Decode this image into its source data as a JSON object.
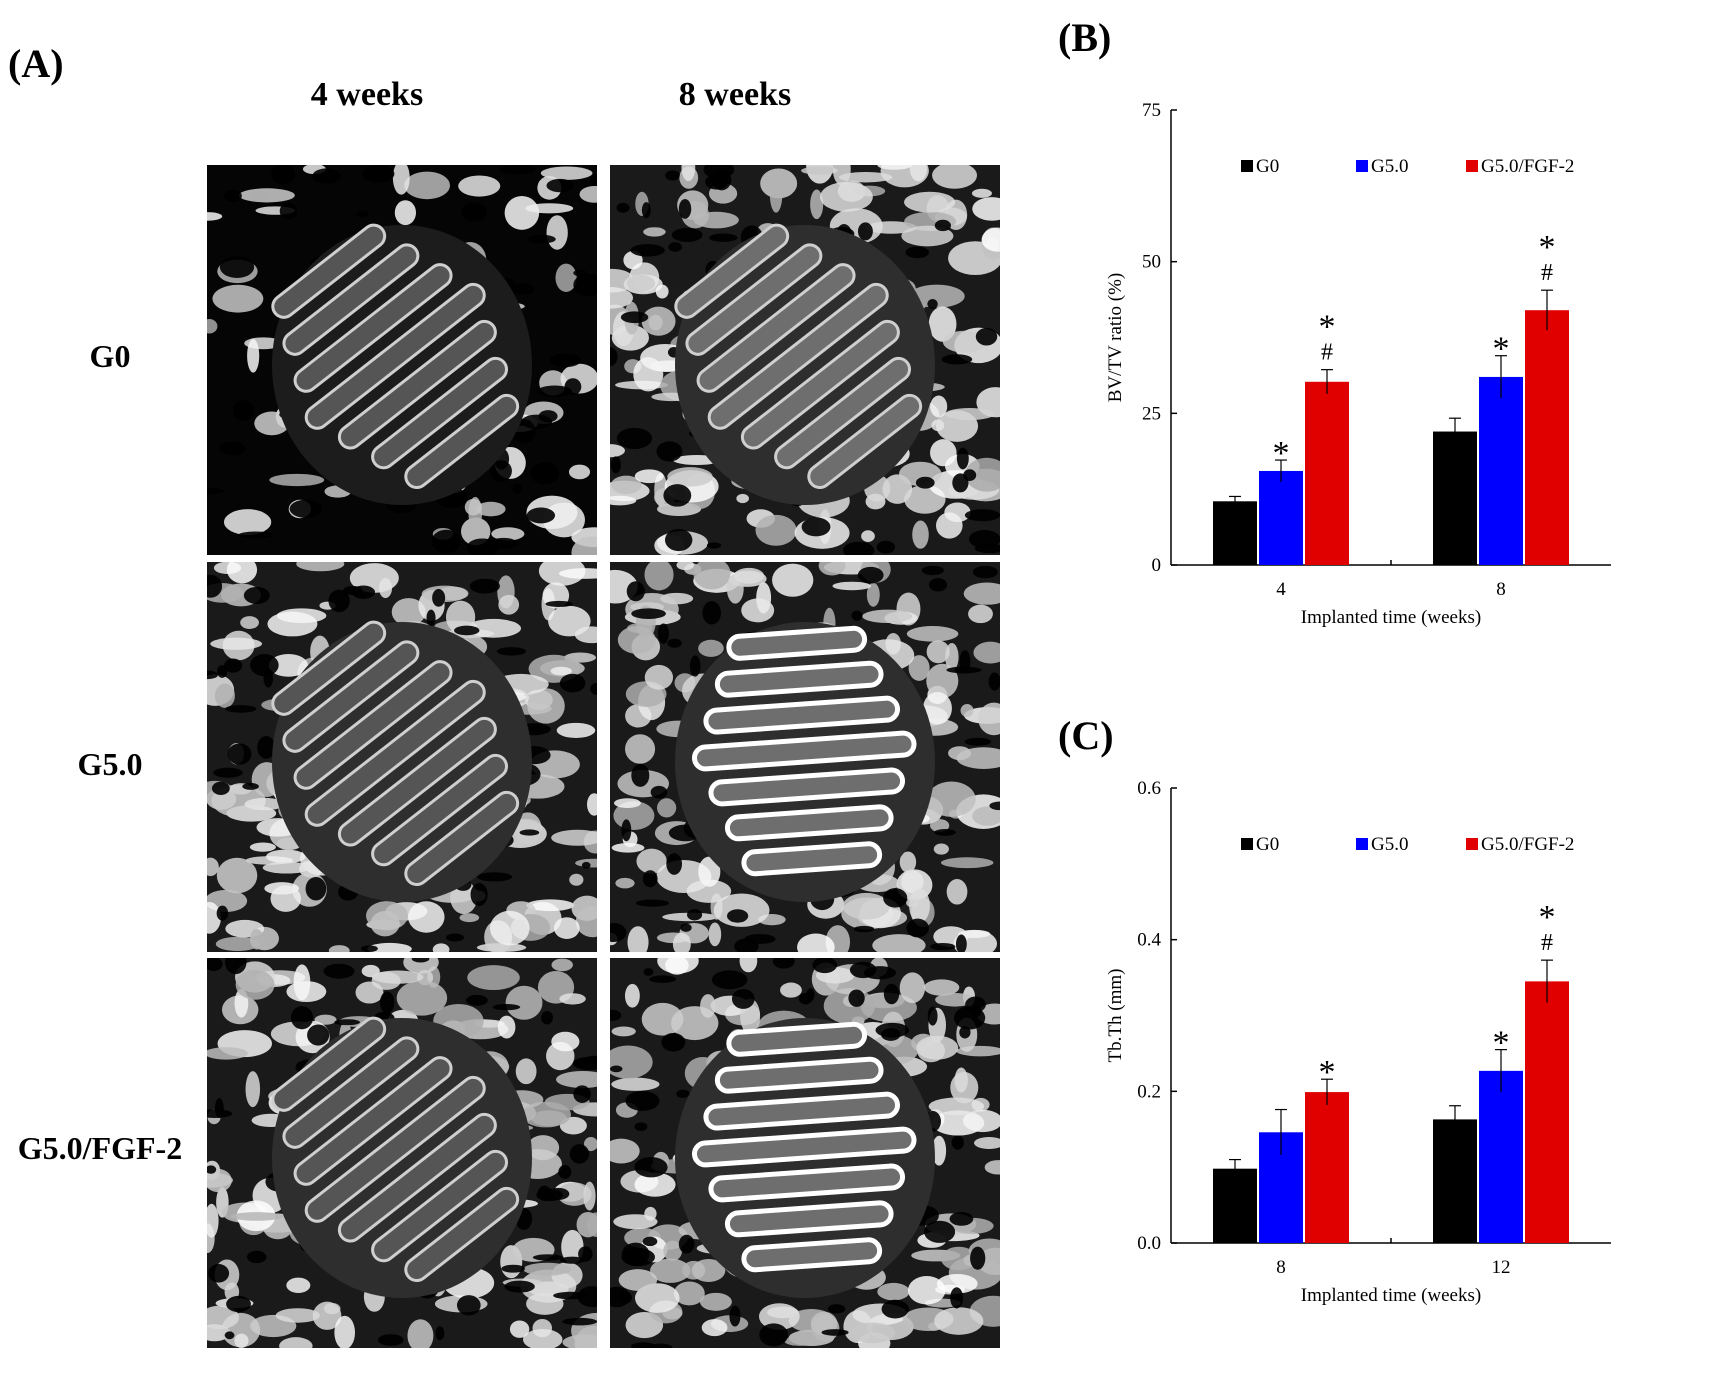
{
  "panelA": {
    "letter": "(A)",
    "columns": [
      "4 weeks",
      "8 weeks"
    ],
    "rows": [
      "G0",
      "G5.0",
      "G5.0/FGF-2"
    ]
  },
  "chart_data": [
    {
      "letter": "(B)",
      "type": "bar",
      "categories": [
        "4",
        "8"
      ],
      "series": [
        {
          "name": "G0",
          "color": "#000000",
          "values": [
            10.5,
            22.0
          ],
          "errors": [
            0.8,
            2.2
          ],
          "marks": [
            "",
            ""
          ]
        },
        {
          "name": "G5.0",
          "color": "#0000ff",
          "values": [
            15.5,
            31.0
          ],
          "errors": [
            1.8,
            3.5
          ],
          "marks": [
            "*",
            "*"
          ]
        },
        {
          "name": "G5.0/FGF-2",
          "color": "#e00000",
          "values": [
            30.2,
            42.0
          ],
          "errors": [
            2.0,
            3.3
          ],
          "marks": [
            "*\n#",
            "*\n#"
          ]
        }
      ],
      "xlabel": "Implanted time (weeks)",
      "ylabel": "BV/TV ratio (%)",
      "ylim": [
        0,
        75
      ],
      "yticks": [
        "0",
        "25",
        "50",
        "75"
      ],
      "legend_position": "top",
      "grid": false
    },
    {
      "letter": "(C)",
      "type": "bar",
      "categories": [
        "8",
        "12"
      ],
      "series": [
        {
          "name": "G0",
          "color": "#000000",
          "values": [
            0.098,
            0.163
          ],
          "errors": [
            0.012,
            0.018
          ],
          "marks": [
            "",
            ""
          ]
        },
        {
          "name": "G5.0",
          "color": "#0000ff",
          "values": [
            0.146,
            0.227
          ],
          "errors": [
            0.03,
            0.028
          ],
          "marks": [
            "",
            "*"
          ]
        },
        {
          "name": "G5.0/FGF-2",
          "color": "#e00000",
          "values": [
            0.199,
            0.345
          ],
          "errors": [
            0.017,
            0.028
          ],
          "marks": [
            "*",
            "*\n#"
          ]
        }
      ],
      "xlabel": "Implanted time (weeks)",
      "ylabel": "Tb.Th (mm)",
      "ylim": [
        0,
        0.6
      ],
      "yticks": [
        "0.0",
        "0.2",
        "0.4",
        "0.6"
      ],
      "legend_position": "top",
      "grid": false
    }
  ]
}
